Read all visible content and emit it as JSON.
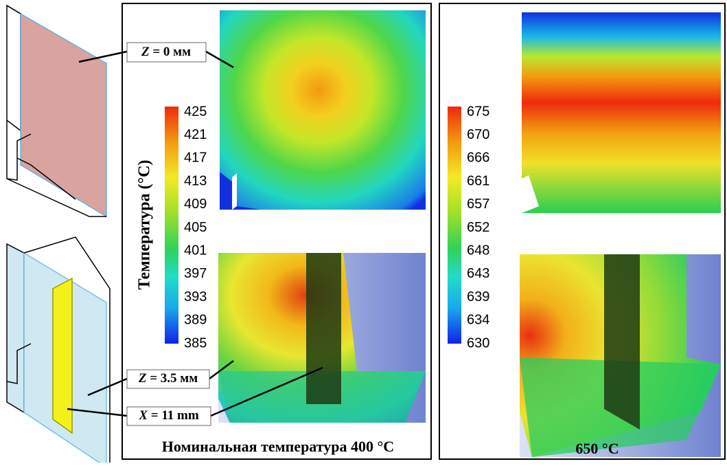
{
  "left_panel": {
    "label_z0": {
      "var": "Z",
      "text": "= 0 мм"
    },
    "label_z35": {
      "var": "Z",
      "text": "= 3.5 мм"
    },
    "label_x11": {
      "var": "X",
      "text": "= 11 mm"
    },
    "colorbar_title": "Температура (°C)",
    "colorbar_ticks": [
      425,
      421,
      417,
      413,
      409,
      405,
      401,
      397,
      393,
      389,
      385
    ],
    "caption": "Номинальная температура 400 °C"
  },
  "right_panel": {
    "colorbar_ticks": [
      675,
      670,
      666,
      661,
      657,
      652,
      648,
      643,
      639,
      634,
      630
    ],
    "caption": "650 °C"
  }
}
